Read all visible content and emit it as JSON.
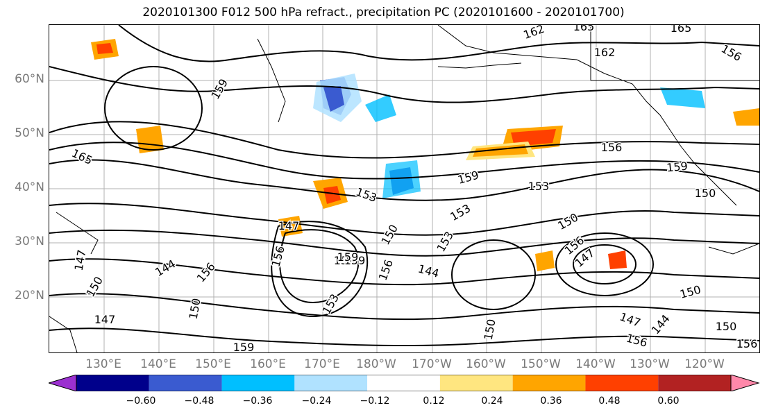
{
  "title": "2020101300 F012 500 hPa refract., precipitation PC (2020101600 - 2020101700)",
  "lat_labels": [
    "60°N",
    "50°N",
    "40°N",
    "30°N",
    "20°N"
  ],
  "lon_labels": [
    "130°E",
    "140°E",
    "150°E",
    "160°E",
    "170°E",
    "180°W",
    "170°W",
    "160°W",
    "150°W",
    "140°W",
    "130°W",
    "120°W"
  ],
  "contour_labels": [
    "162",
    "165",
    "165",
    "162",
    "156",
    "159",
    "165",
    "156",
    "159",
    "153",
    "150",
    "159",
    "153",
    "147",
    "150",
    "153",
    "159",
    "159",
    "153",
    "150",
    "156",
    "147",
    "156",
    "144",
    "147",
    "156",
    "150",
    "156",
    "153",
    "159",
    "147",
    "150",
    "144",
    "147",
    "150",
    "144",
    "150",
    "156",
    "159",
    "150",
    "156"
  ],
  "colorbar": {
    "ticks": [
      "−0.60",
      "−0.48",
      "−0.36",
      "−0.24",
      "−0.12",
      "0.12",
      "0.24",
      "0.36",
      "0.48",
      "0.60"
    ],
    "colors": [
      "#9b30d0",
      "#00008b",
      "#3a5bd0",
      "#00bfff",
      "#b0e2ff",
      "#ffffff",
      "#ffe680",
      "#ffa500",
      "#ff4000",
      "#b22222",
      "#ff88aa"
    ]
  }
}
